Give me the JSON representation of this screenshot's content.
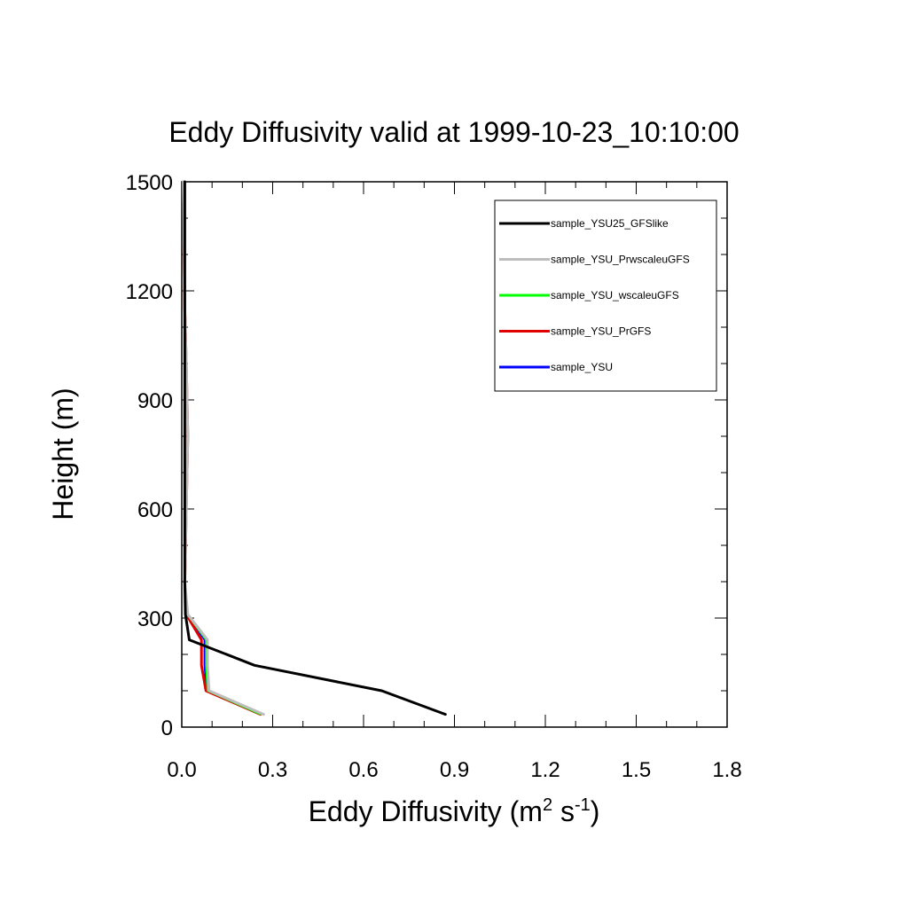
{
  "chart_data": {
    "type": "line",
    "title": "Eddy Diffusivity valid at 1999-10-23_10:10:00",
    "xlabel": {
      "base": "Eddy Diffusivity (m",
      "sup1": "2",
      "mid": " s",
      "sup2": "-1",
      "end": ")"
    },
    "ylabel": "Height (m)",
    "xlim": [
      0,
      1.8
    ],
    "ylim": [
      0,
      1500
    ],
    "x_ticks": [
      0.0,
      0.3,
      0.6,
      0.9,
      1.2,
      1.5,
      1.8
    ],
    "x_tick_labels": [
      "0.0",
      "0.3",
      "0.6",
      "0.9",
      "1.2",
      "1.5",
      "1.8"
    ],
    "y_ticks": [
      0,
      300,
      600,
      900,
      1200,
      1500
    ],
    "y_tick_labels": [
      "0",
      "300",
      "600",
      "900",
      "1200",
      "1500"
    ],
    "legend_position": "top-right",
    "series": [
      {
        "name": "sample_YSU25_GFSlike",
        "color": "#000000",
        "width": 3,
        "points": [
          [
            0.87,
            35
          ],
          [
            0.66,
            100
          ],
          [
            0.24,
            170
          ],
          [
            0.025,
            240
          ],
          [
            0.012,
            310
          ],
          [
            0.01,
            400
          ],
          [
            0.01,
            600
          ],
          [
            0.01,
            900
          ],
          [
            0.01,
            1200
          ],
          [
            0.01,
            1500
          ]
        ]
      },
      {
        "name": "sample_YSU_PrwscaleuGFS",
        "color": "#bdbdbd",
        "width": 3,
        "points": [
          [
            0.27,
            35
          ],
          [
            0.09,
            100
          ],
          [
            0.085,
            170
          ],
          [
            0.085,
            240
          ],
          [
            0.02,
            310
          ],
          [
            0.01,
            400
          ],
          [
            0.015,
            600
          ],
          [
            0.02,
            800
          ],
          [
            0.015,
            1000
          ],
          [
            0.01,
            1150
          ],
          [
            0.005,
            1500
          ]
        ]
      },
      {
        "name": "sample_YSU_wscaleuGFS",
        "color": "#00ff00",
        "width": 2,
        "points": [
          [
            0.26,
            35
          ],
          [
            0.085,
            100
          ],
          [
            0.08,
            170
          ],
          [
            0.08,
            240
          ],
          [
            0.018,
            310
          ],
          [
            0.01,
            400
          ],
          [
            0.015,
            600
          ],
          [
            0.02,
            800
          ],
          [
            0.015,
            1000
          ],
          [
            0.01,
            1150
          ],
          [
            0.005,
            1500
          ]
        ]
      },
      {
        "name": "sample_YSU_PrGFS",
        "color": "#e00000",
        "width": 3,
        "points": [
          [
            0.26,
            35
          ],
          [
            0.08,
            100
          ],
          [
            0.065,
            170
          ],
          [
            0.065,
            240
          ],
          [
            0.015,
            310
          ],
          [
            0.01,
            400
          ],
          [
            0.015,
            600
          ],
          [
            0.02,
            800
          ],
          [
            0.015,
            1000
          ],
          [
            0.01,
            1150
          ],
          [
            0.005,
            1500
          ]
        ]
      },
      {
        "name": "sample_YSU",
        "color": "#0000ff",
        "width": 2,
        "points": [
          [
            0.258,
            35
          ],
          [
            0.082,
            100
          ],
          [
            0.075,
            170
          ],
          [
            0.075,
            240
          ],
          [
            0.016,
            310
          ],
          [
            0.01,
            400
          ],
          [
            0.015,
            600
          ],
          [
            0.02,
            800
          ],
          [
            0.015,
            1000
          ],
          [
            0.01,
            1150
          ],
          [
            0.005,
            1500
          ]
        ]
      }
    ]
  }
}
